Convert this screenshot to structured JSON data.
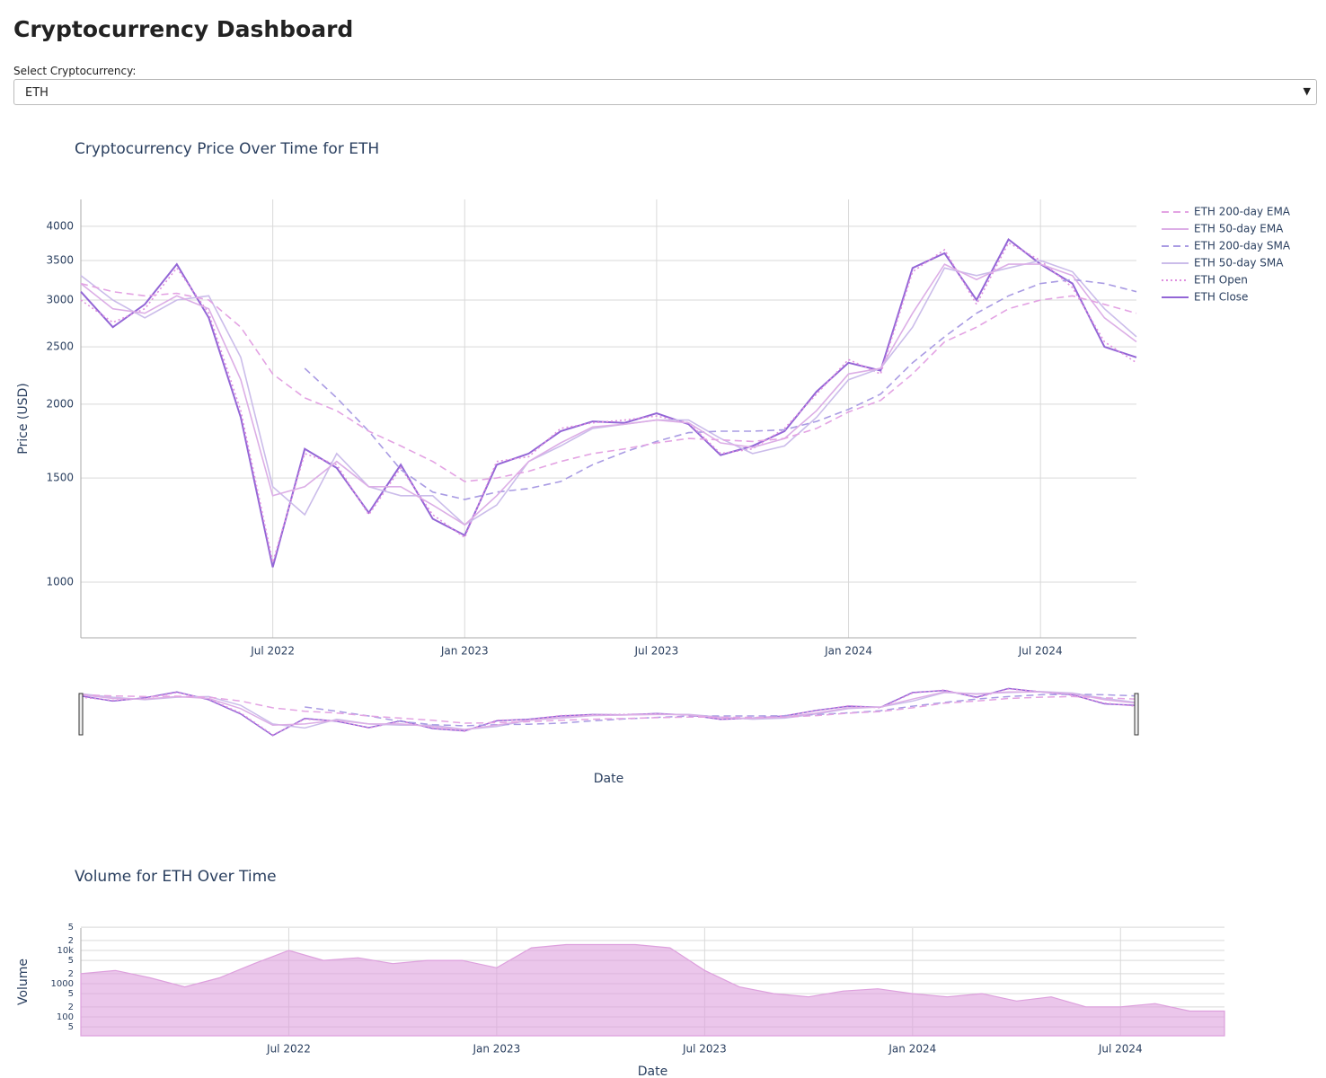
{
  "title": "Cryptocurrency Dashboard",
  "selector": {
    "label": "Select Cryptocurrency:",
    "value": "ETH"
  },
  "chart_data": [
    {
      "type": "line",
      "title": "Cryptocurrency Price Over Time for ETH",
      "x_label": "Date",
      "y_label": "Price (USD)",
      "log_y": true,
      "grid": true,
      "legend": "right",
      "x": [
        "2022-01",
        "2022-02",
        "2022-03",
        "2022-04",
        "2022-05",
        "2022-06",
        "2022-07",
        "2022-08",
        "2022-09",
        "2022-10",
        "2022-11",
        "2022-12",
        "2023-01",
        "2023-02",
        "2023-03",
        "2023-04",
        "2023-05",
        "2023-06",
        "2023-07",
        "2023-08",
        "2023-09",
        "2023-10",
        "2023-11",
        "2023-12",
        "2024-01",
        "2024-02",
        "2024-03",
        "2024-04",
        "2024-05",
        "2024-06",
        "2024-07",
        "2024-08",
        "2024-09",
        "2024-10"
      ],
      "xlim": [
        "2022-01",
        "2024-10"
      ],
      "xticks": [
        {
          "value": "2022-07",
          "label": "Jul 2022"
        },
        {
          "value": "2023-01",
          "label": "Jan 2023"
        },
        {
          "value": "2023-07",
          "label": "Jul 2023"
        },
        {
          "value": "2024-01",
          "label": "Jan 2024"
        },
        {
          "value": "2024-07",
          "label": "Jul 2024"
        }
      ],
      "ylim": [
        805,
        4440
      ],
      "yticks": [
        1000,
        1500,
        2000,
        2500,
        3000,
        3500,
        4000
      ],
      "series": [
        {
          "name": "ETH 200-day EMA",
          "color": "#e3a3e3",
          "dash": "dash",
          "values": [
            3200,
            3100,
            3050,
            3080,
            3000,
            2700,
            2250,
            2050,
            1950,
            1800,
            1700,
            1600,
            1480,
            1500,
            1540,
            1600,
            1650,
            1680,
            1720,
            1750,
            1740,
            1730,
            1750,
            1820,
            1940,
            2030,
            2250,
            2550,
            2700,
            2900,
            3000,
            3050,
            2950,
            2850
          ]
        },
        {
          "name": "ETH 50-day EMA",
          "color": "#dcaee6",
          "dash": "solid",
          "values": [
            3200,
            2900,
            2850,
            3050,
            2900,
            2200,
            1400,
            1450,
            1600,
            1450,
            1450,
            1350,
            1250,
            1400,
            1600,
            1720,
            1830,
            1850,
            1880,
            1860,
            1720,
            1690,
            1750,
            1950,
            2250,
            2300,
            2850,
            3450,
            3250,
            3450,
            3450,
            3300,
            2800,
            2550
          ]
        },
        {
          "name": "ETH 200-day SMA",
          "color": "#a99be3",
          "dash": "dash",
          "values": [
            null,
            null,
            null,
            null,
            null,
            null,
            null,
            2300,
            2050,
            1800,
            1550,
            1420,
            1380,
            1420,
            1440,
            1480,
            1580,
            1660,
            1730,
            1790,
            1800,
            1800,
            1810,
            1870,
            1960,
            2080,
            2350,
            2600,
            2850,
            3050,
            3200,
            3250,
            3200,
            3100
          ]
        },
        {
          "name": "ETH 50-day SMA",
          "color": "#cbbcea",
          "dash": "solid",
          "values": [
            3300,
            3000,
            2800,
            3000,
            3050,
            2400,
            1450,
            1300,
            1650,
            1450,
            1400,
            1400,
            1250,
            1350,
            1600,
            1700,
            1820,
            1850,
            1880,
            1880,
            1750,
            1650,
            1700,
            1900,
            2200,
            2300,
            2700,
            3400,
            3300,
            3400,
            3500,
            3350,
            2900,
            2600
          ]
        },
        {
          "name": "ETH Open",
          "color": "#df8fdf",
          "dash": "dot",
          "values": [
            3000,
            2750,
            2900,
            3400,
            2850,
            1950,
            1080,
            1650,
            1580,
            1300,
            1560,
            1300,
            1190,
            1600,
            1630,
            1820,
            1860,
            1880,
            1910,
            1860,
            1650,
            1680,
            1820,
            2080,
            2380,
            2250,
            3350,
            3650,
            2950,
            3750,
            3500,
            3150,
            2550,
            2350
          ]
        },
        {
          "name": "ETH Close",
          "color": "#9366d6",
          "dash": "solid",
          "values": [
            3100,
            2700,
            2950,
            3450,
            2800,
            1900,
            1060,
            1680,
            1560,
            1310,
            1580,
            1280,
            1200,
            1580,
            1650,
            1800,
            1870,
            1860,
            1930,
            1850,
            1640,
            1700,
            1800,
            2100,
            2350,
            2280,
            3400,
            3600,
            3000,
            3800,
            3450,
            3200,
            2500,
            2400
          ]
        }
      ]
    },
    {
      "type": "area",
      "title": "Volume for ETH Over Time",
      "x_label": "Date",
      "y_label": "Volume",
      "log_y": true,
      "grid": true,
      "color": "#dda0dd",
      "x": [
        "2022-01",
        "2022-02",
        "2022-03",
        "2022-04",
        "2022-05",
        "2022-06",
        "2022-07",
        "2022-08",
        "2022-09",
        "2022-10",
        "2022-11",
        "2022-12",
        "2023-01",
        "2023-02",
        "2023-03",
        "2023-04",
        "2023-05",
        "2023-06",
        "2023-07",
        "2023-08",
        "2023-09",
        "2023-10",
        "2023-11",
        "2023-12",
        "2024-01",
        "2024-02",
        "2024-03",
        "2024-04",
        "2024-05",
        "2024-06",
        "2024-07",
        "2024-08",
        "2024-09",
        "2024-10"
      ],
      "xlim": [
        "2022-01",
        "2024-10"
      ],
      "xticks": [
        {
          "value": "2022-07",
          "label": "Jul 2022"
        },
        {
          "value": "2023-01",
          "label": "Jan 2023"
        },
        {
          "value": "2023-07",
          "label": "Jul 2023"
        },
        {
          "value": "2024-01",
          "label": "Jan 2024"
        },
        {
          "value": "2024-07",
          "label": "Jul 2024"
        }
      ],
      "ylim": [
        27,
        47400
      ],
      "yticks": [
        {
          "value": 50000,
          "label": "5"
        },
        {
          "value": 20000,
          "label": "2"
        },
        {
          "value": 10000,
          "label": "10k"
        },
        {
          "value": 5000,
          "label": "5"
        },
        {
          "value": 2000,
          "label": "2"
        },
        1000,
        {
          "value": 500,
          "label": "5"
        },
        {
          "value": 200,
          "label": "2"
        },
        100,
        {
          "value": 50,
          "label": "5"
        }
      ],
      "values": [
        2000,
        2500,
        1500,
        800,
        1500,
        4000,
        10000,
        5000,
        6000,
        4000,
        5000,
        5000,
        3000,
        12000,
        15000,
        15000,
        15000,
        12000,
        2500,
        800,
        500,
        400,
        600,
        700,
        500,
        400,
        500,
        300,
        400,
        200,
        200,
        250,
        150,
        150
      ]
    }
  ]
}
